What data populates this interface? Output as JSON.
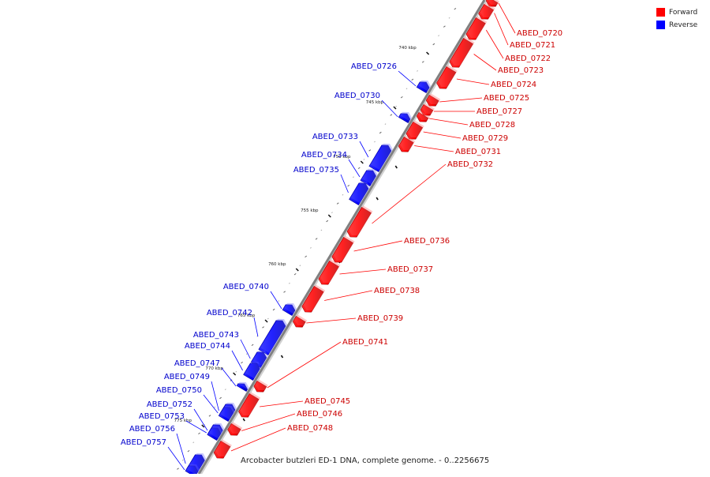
{
  "legend": {
    "forward_label": "Forward",
    "reverse_label": "Reverse",
    "forward_color": "#ff0000",
    "reverse_color": "#0000ff"
  },
  "caption": "Arcobacter butzleri ED-1 DNA, complete genome. - 0..2256675",
  "scale": {
    "unit": "kbp",
    "ticks": [
      "740 kbp",
      "745 kbp",
      "750 kbp",
      "755 kbp",
      "760 kbp",
      "765 kbp",
      "770 kbp",
      "775 kbp"
    ]
  },
  "forward_genes": [
    "ABED_0720",
    "ABED_0721",
    "ABED_0722",
    "ABED_0723",
    "ABED_0724",
    "ABED_0725",
    "ABED_0727",
    "ABED_0728",
    "ABED_0729",
    "ABED_0731",
    "ABED_0732",
    "ABED_0736",
    "ABED_0737",
    "ABED_0738",
    "ABED_0739",
    "ABED_0741",
    "ABED_0745",
    "ABED_0746",
    "ABED_0748"
  ],
  "reverse_genes": [
    "ABED_0726",
    "ABED_0730",
    "ABED_0733",
    "ABED_0734",
    "ABED_0735",
    "ABED_0740",
    "ABED_0742",
    "ABED_0743",
    "ABED_0744",
    "ABED_0747",
    "ABED_0749",
    "ABED_0750",
    "ABED_0752",
    "ABED_0753",
    "ABED_0756",
    "ABED_0757"
  ]
}
